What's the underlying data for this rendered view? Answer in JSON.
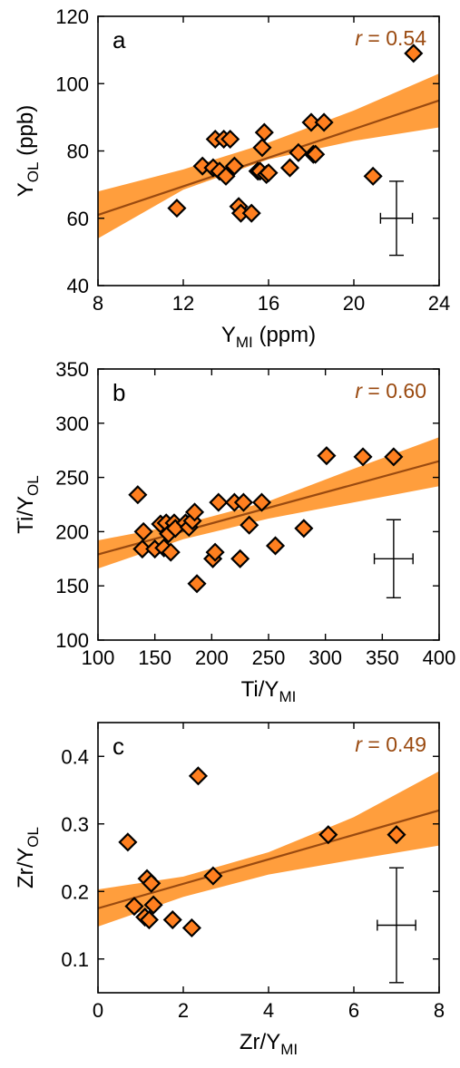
{
  "colors": {
    "band": "#ff9e3d",
    "fit_line": "#9a4a10",
    "marker_fill": "#ff7f1f",
    "marker_edge": "#000000",
    "corr_text": "#9a4a10"
  },
  "chart_data": [
    {
      "type": "scatter",
      "panel_letter": "a",
      "r_label": "r",
      "r_value": "= 0.54",
      "xlabel_main": "Y",
      "xlabel_sub": "MI",
      "xlabel_tail": " (ppm)",
      "ylabel_main": "Y",
      "ylabel_sub": "OL",
      "ylabel_tail": " (ppb)",
      "xlim": [
        8,
        24
      ],
      "ylim": [
        40,
        120
      ],
      "xticks": [
        8,
        12,
        16,
        20,
        24
      ],
      "yticks": [
        40,
        60,
        80,
        100,
        120
      ],
      "fit": {
        "x": [
          8,
          24
        ],
        "y": [
          61,
          95
        ]
      },
      "band": {
        "x": [
          8,
          12,
          16,
          20,
          24
        ],
        "lower": [
          54,
          68.5,
          77.5,
          83,
          87
        ],
        "upper": [
          68,
          74.5,
          82.5,
          92,
          103
        ]
      },
      "error_bar": {
        "x": 22,
        "y": 60,
        "x_err": 0.75,
        "y_err": 11
      },
      "points": [
        {
          "x": 11.7,
          "y": 63
        },
        {
          "x": 12.9,
          "y": 75.5
        },
        {
          "x": 13.4,
          "y": 75
        },
        {
          "x": 13.5,
          "y": 83.5
        },
        {
          "x": 13.7,
          "y": 74
        },
        {
          "x": 13.9,
          "y": 83.5
        },
        {
          "x": 14.0,
          "y": 72.5
        },
        {
          "x": 14.2,
          "y": 83.5
        },
        {
          "x": 14.4,
          "y": 75.5
        },
        {
          "x": 14.6,
          "y": 63.5
        },
        {
          "x": 14.7,
          "y": 61.5
        },
        {
          "x": 15.2,
          "y": 61.5
        },
        {
          "x": 15.5,
          "y": 74
        },
        {
          "x": 15.6,
          "y": 74
        },
        {
          "x": 15.7,
          "y": 81
        },
        {
          "x": 15.8,
          "y": 85.5
        },
        {
          "x": 15.9,
          "y": 73
        },
        {
          "x": 16.0,
          "y": 73.5
        },
        {
          "x": 17.0,
          "y": 75
        },
        {
          "x": 17.4,
          "y": 79.5
        },
        {
          "x": 18.0,
          "y": 88.5
        },
        {
          "x": 18.1,
          "y": 79
        },
        {
          "x": 18.2,
          "y": 79
        },
        {
          "x": 18.6,
          "y": 88.5
        },
        {
          "x": 20.9,
          "y": 72.5
        },
        {
          "x": 22.8,
          "y": 109
        }
      ]
    },
    {
      "type": "scatter",
      "panel_letter": "b",
      "r_label": "r",
      "r_value": "= 0.60",
      "xlabel_main": "Ti/Y",
      "xlabel_sub": "MI",
      "xlabel_tail": "",
      "ylabel_main": "Ti/Y",
      "ylabel_sub": "OL",
      "ylabel_tail": "",
      "xlim": [
        100,
        400
      ],
      "ylim": [
        100,
        350
      ],
      "xticks": [
        100,
        150,
        200,
        250,
        300,
        350,
        400
      ],
      "yticks": [
        100,
        150,
        200,
        250,
        300,
        350
      ],
      "fit": {
        "x": [
          100,
          400
        ],
        "y": [
          179,
          265
        ]
      },
      "band": {
        "x": [
          100,
          175,
          250,
          325,
          400
        ],
        "lower": [
          166,
          193,
          212,
          227,
          242
        ],
        "upper": [
          192,
          207,
          228,
          258,
          287
        ]
      },
      "error_bar": {
        "x": 360,
        "y": 175,
        "x_err": 17,
        "y_err": 36
      },
      "points": [
        {
          "x": 135,
          "y": 234
        },
        {
          "x": 139,
          "y": 184
        },
        {
          "x": 140,
          "y": 200
        },
        {
          "x": 150,
          "y": 184
        },
        {
          "x": 155,
          "y": 207
        },
        {
          "x": 158,
          "y": 185
        },
        {
          "x": 160,
          "y": 208
        },
        {
          "x": 162,
          "y": 198
        },
        {
          "x": 164,
          "y": 181
        },
        {
          "x": 167,
          "y": 208
        },
        {
          "x": 168,
          "y": 203
        },
        {
          "x": 177,
          "y": 208
        },
        {
          "x": 180,
          "y": 204
        },
        {
          "x": 183,
          "y": 210
        },
        {
          "x": 185,
          "y": 218
        },
        {
          "x": 187,
          "y": 152
        },
        {
          "x": 201,
          "y": 175
        },
        {
          "x": 203,
          "y": 181
        },
        {
          "x": 206,
          "y": 227
        },
        {
          "x": 220,
          "y": 227
        },
        {
          "x": 225,
          "y": 175
        },
        {
          "x": 228,
          "y": 227
        },
        {
          "x": 233,
          "y": 206
        },
        {
          "x": 244,
          "y": 227
        },
        {
          "x": 256,
          "y": 187
        },
        {
          "x": 281,
          "y": 203
        },
        {
          "x": 301,
          "y": 270
        },
        {
          "x": 333,
          "y": 269
        },
        {
          "x": 360,
          "y": 269
        }
      ]
    },
    {
      "type": "scatter",
      "panel_letter": "c",
      "r_label": "r",
      "r_value": "= 0.49",
      "xlabel_main": "Zr/Y",
      "xlabel_sub": "MI",
      "xlabel_tail": "",
      "ylabel_main": "Zr/Y",
      "ylabel_sub": "OL",
      "ylabel_tail": "",
      "xlim": [
        0,
        8
      ],
      "ylim": [
        0.05,
        0.45
      ],
      "xticks": [
        0,
        2,
        4,
        6,
        8
      ],
      "yticks": [
        0.1,
        0.2,
        0.3,
        0.4
      ],
      "fit": {
        "x": [
          0,
          8
        ],
        "y": [
          0.175,
          0.32
        ]
      },
      "band": {
        "x": [
          0,
          2,
          4,
          6,
          8
        ],
        "lower": [
          0.148,
          0.192,
          0.225,
          0.247,
          0.268
        ],
        "upper": [
          0.203,
          0.222,
          0.258,
          0.31,
          0.378
        ]
      },
      "error_bar": {
        "x": 7,
        "y": 0.15,
        "x_err": 0.45,
        "y_err": 0.085
      },
      "points": [
        {
          "x": 0.7,
          "y": 0.273
        },
        {
          "x": 0.85,
          "y": 0.178
        },
        {
          "x": 1.1,
          "y": 0.162
        },
        {
          "x": 1.15,
          "y": 0.219
        },
        {
          "x": 1.2,
          "y": 0.158
        },
        {
          "x": 1.25,
          "y": 0.212
        },
        {
          "x": 1.3,
          "y": 0.18
        },
        {
          "x": 1.75,
          "y": 0.158
        },
        {
          "x": 2.2,
          "y": 0.146
        },
        {
          "x": 2.35,
          "y": 0.371
        },
        {
          "x": 2.7,
          "y": 0.223
        },
        {
          "x": 5.4,
          "y": 0.284
        },
        {
          "x": 7.0,
          "y": 0.284
        }
      ]
    }
  ]
}
